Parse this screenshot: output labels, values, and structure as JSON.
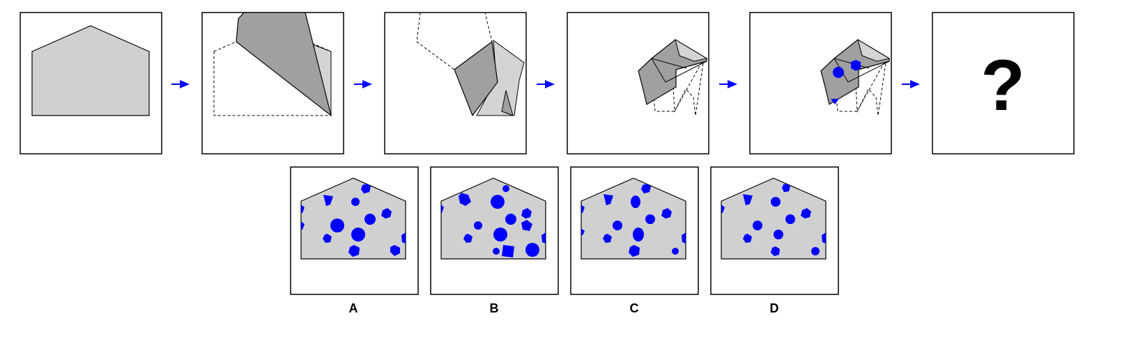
{
  "question_mark": "?",
  "options": [
    {
      "label": "A"
    },
    {
      "label": "B"
    },
    {
      "label": "C"
    },
    {
      "label": "D"
    }
  ],
  "colors": {
    "paper": "#d0d0d0",
    "fold_dark": "#a0a0a0",
    "fold_light": "#d4d4d4",
    "hole": "#0000ff",
    "arrow": "#0000ff",
    "stroke": "#000000"
  },
  "icons": [
    "right-arrow-icon"
  ]
}
